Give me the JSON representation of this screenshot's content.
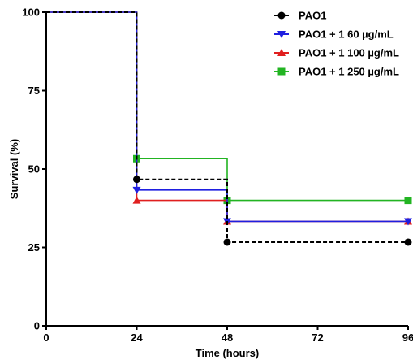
{
  "chart_data": {
    "type": "line",
    "subtype": "kaplan-meier-step",
    "title": "",
    "xlabel": "Time (hours)",
    "ylabel": "Survival (%)",
    "xlim": [
      0,
      96
    ],
    "ylim": [
      0,
      100
    ],
    "x_ticks": [
      "0",
      "24",
      "48",
      "72",
      "96"
    ],
    "y_ticks": [
      "0",
      "25",
      "50",
      "75",
      "100"
    ],
    "grid": false,
    "legend_position": "top-right",
    "series": [
      {
        "name": "PAO1",
        "color": "#000000",
        "marker": "circle",
        "line_style": "dashed",
        "steps": [
          [
            0,
            100
          ],
          [
            24,
            46.7
          ],
          [
            48,
            26.7
          ],
          [
            96,
            26.7
          ]
        ],
        "markers": [
          [
            24,
            46.7
          ],
          [
            48,
            26.7
          ],
          [
            96,
            26.7
          ]
        ]
      },
      {
        "name": "PAO1 + 1 60 µg/mL",
        "color": "#1f1fe0",
        "marker": "triangle-down",
        "line_style": "solid",
        "steps": [
          [
            0,
            100
          ],
          [
            24,
            43.3
          ],
          [
            48,
            33.3
          ],
          [
            96,
            33.3
          ]
        ],
        "markers": [
          [
            24,
            43.3
          ],
          [
            48,
            33.3
          ],
          [
            96,
            33.3
          ]
        ]
      },
      {
        "name": "PAO1 + 1 100 µg/mL",
        "color": "#e01f1f",
        "marker": "triangle-up",
        "line_style": "solid",
        "steps": [
          [
            0,
            100
          ],
          [
            24,
            40
          ],
          [
            48,
            33.3
          ],
          [
            96,
            33.3
          ]
        ],
        "markers": [
          [
            24,
            40
          ],
          [
            48,
            33.3
          ],
          [
            96,
            33.3
          ]
        ]
      },
      {
        "name": "PAO1 + 1 250 µg/mL",
        "color": "#22b422",
        "marker": "square",
        "line_style": "solid",
        "steps": [
          [
            0,
            100
          ],
          [
            24,
            53.3
          ],
          [
            48,
            40
          ],
          [
            96,
            40
          ]
        ],
        "markers": [
          [
            24,
            53.3
          ],
          [
            48,
            40
          ],
          [
            96,
            40
          ]
        ]
      }
    ]
  }
}
